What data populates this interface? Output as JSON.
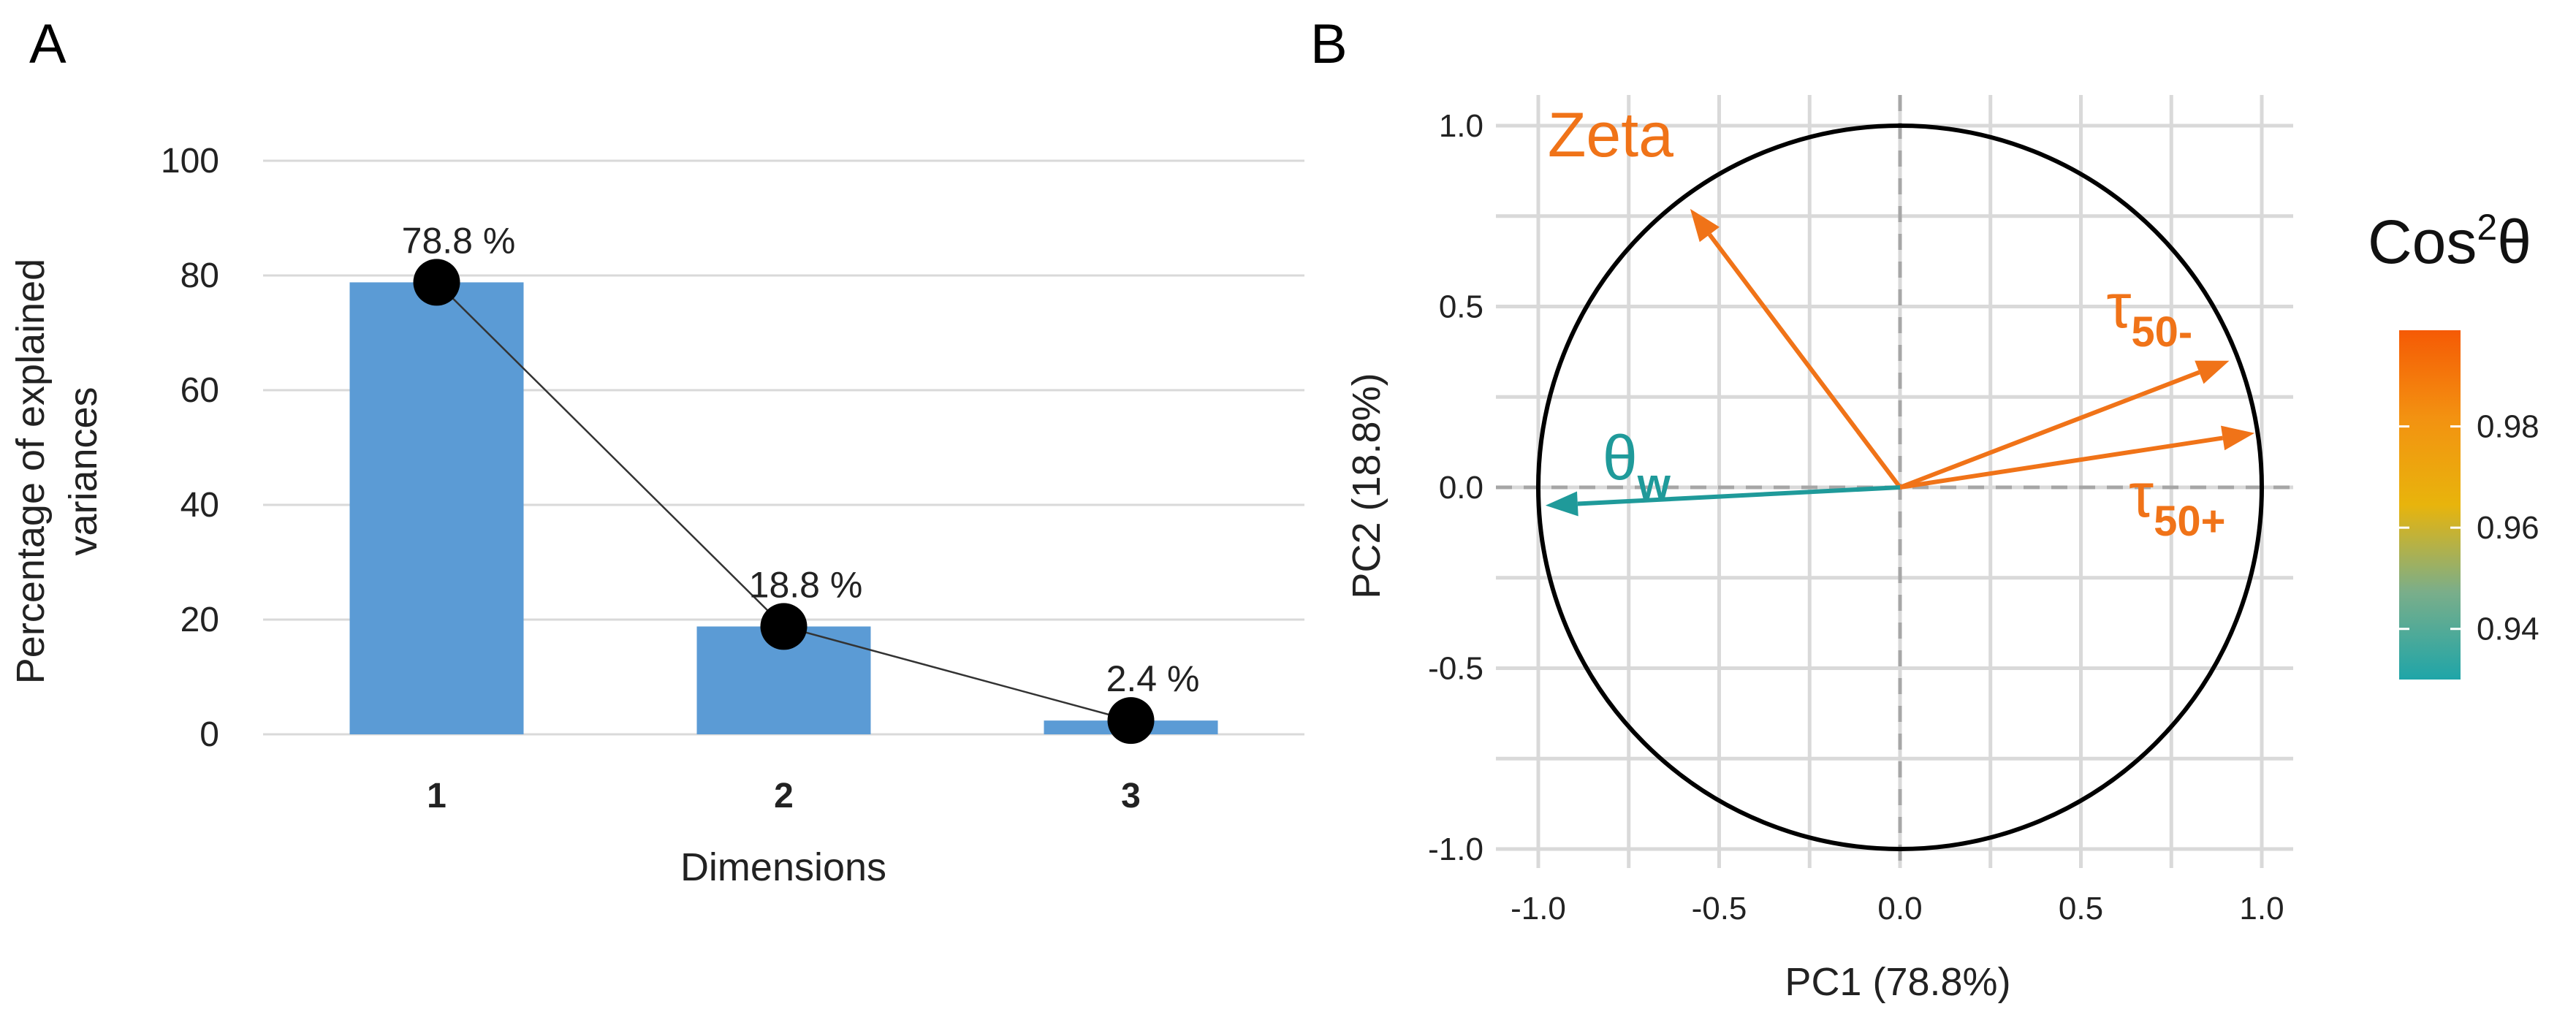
{
  "panels": {
    "a": {
      "letter": "A"
    },
    "b": {
      "letter": "B"
    }
  },
  "colors": {
    "bar": "#5b9bd5",
    "marker": "#000000",
    "orange_arrow": "#f07318",
    "teal_arrow": "#1f9a9a",
    "circle": "#000000",
    "grid": "#d9d9d9"
  },
  "chart_data": [
    {
      "type": "bar",
      "panel": "A",
      "title": "",
      "xlabel": "Dimensions",
      "ylabel_lines": [
        "Percentage of explained",
        "variances"
      ],
      "categories": [
        "1",
        "2",
        "3"
      ],
      "values": [
        78.8,
        18.8,
        2.4
      ],
      "value_labels": [
        "78.8 %",
        "18.8 %",
        "2.4 %"
      ],
      "ylim": [
        0,
        100
      ],
      "yticks": [
        0,
        20,
        40,
        60,
        80,
        100
      ],
      "grid": true,
      "overlay": "line with circular markers at each bar value"
    },
    {
      "type": "scatter",
      "subtype": "variable-correlation-circle",
      "panel": "B",
      "title": "",
      "xlabel": "PC1 (78.8%)",
      "ylabel": "PC2 (18.8%)",
      "xlim": [
        -1.0,
        1.0
      ],
      "ylim": [
        -1.0,
        1.0
      ],
      "xticks": [
        "-1.0",
        "-0.5",
        "0.0",
        "0.5",
        "1.0"
      ],
      "yticks": [
        "-1.0",
        "-0.5",
        "0.0",
        "0.5",
        "1.0"
      ],
      "grid": true,
      "variables": [
        {
          "label": "Zeta",
          "sub": "",
          "x": -0.58,
          "y": 0.77,
          "cos2": 0.9887,
          "color": "#f07318"
        },
        {
          "label": "τ",
          "sub": "50-",
          "x": 0.91,
          "y": 0.35,
          "cos2": 0.978,
          "color": "#f07318"
        },
        {
          "label": "τ",
          "sub": "50+",
          "x": 0.98,
          "y": 0.15,
          "cos2": 0.982,
          "color": "#f07318"
        },
        {
          "label": "θ",
          "sub": "w",
          "x": -0.98,
          "y": -0.05,
          "cos2": 0.93,
          "color": "#1f9a9a"
        }
      ],
      "legend": {
        "title_base": "Cos",
        "title_sup": "2",
        "title_tail": "θ",
        "position": "right",
        "ticks": [
          "0.98",
          "0.96",
          "0.94"
        ],
        "gradient_colors": [
          "#1fa5a8",
          "#7aae8a",
          "#e8b40c",
          "#f39211",
          "#f55a05"
        ]
      }
    }
  ]
}
